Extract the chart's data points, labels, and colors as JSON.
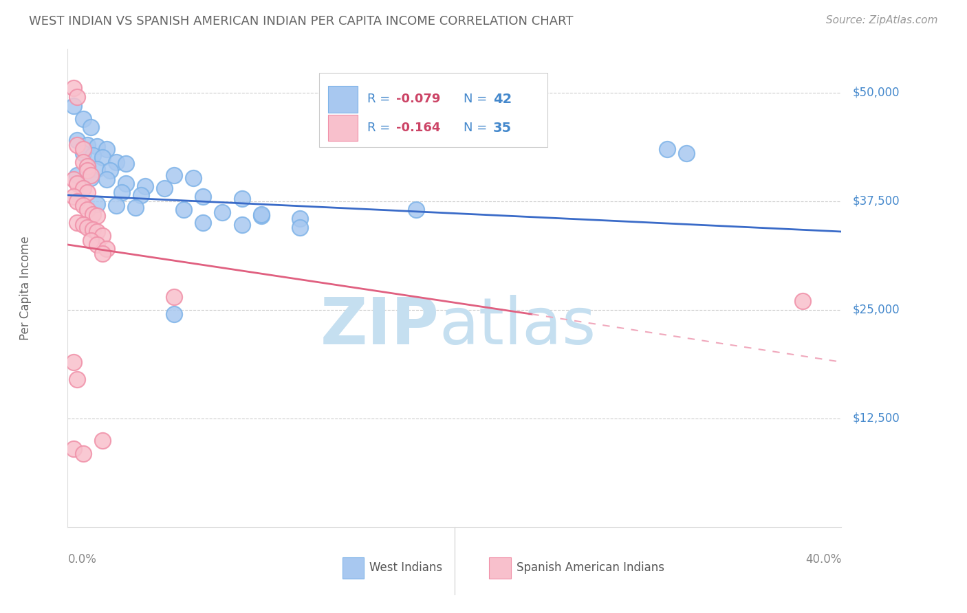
{
  "title": "WEST INDIAN VS SPANISH AMERICAN INDIAN PER CAPITA INCOME CORRELATION CHART",
  "source": "Source: ZipAtlas.com",
  "ylabel": "Per Capita Income",
  "x_lim": [
    0.0,
    0.4
  ],
  "y_lim": [
    0,
    55000
  ],
  "y_ticks": [
    12500,
    25000,
    37500,
    50000
  ],
  "legend_blue_r": "-0.079",
  "legend_blue_n": "42",
  "legend_pink_r": "-0.164",
  "legend_pink_n": "35",
  "legend_blue_label": "West Indians",
  "legend_pink_label": "Spanish American Indians",
  "blue_fc": "#A8C8F0",
  "blue_ec": "#7EB3E8",
  "pink_fc": "#F8C0CC",
  "pink_ec": "#F090A8",
  "blue_line_color": "#3A6BC8",
  "pink_line_solid_color": "#E06080",
  "pink_line_dash_color": "#F0A8BC",
  "blue_line": {
    "x0": 0.0,
    "y0": 38200,
    "x1": 0.4,
    "y1": 34000
  },
  "pink_line_solid": {
    "x0": 0.0,
    "y0": 32500,
    "x1": 0.24,
    "y1": 24500
  },
  "pink_line_dashed": {
    "x0": 0.24,
    "y0": 24500,
    "x1": 0.4,
    "y1": 19000
  },
  "blue_points": [
    [
      0.003,
      48500
    ],
    [
      0.008,
      47000
    ],
    [
      0.012,
      46000
    ],
    [
      0.005,
      44500
    ],
    [
      0.01,
      44000
    ],
    [
      0.015,
      43800
    ],
    [
      0.02,
      43500
    ],
    [
      0.008,
      43000
    ],
    [
      0.013,
      42800
    ],
    [
      0.018,
      42500
    ],
    [
      0.025,
      42000
    ],
    [
      0.03,
      41800
    ],
    [
      0.01,
      41500
    ],
    [
      0.015,
      41200
    ],
    [
      0.022,
      41000
    ],
    [
      0.005,
      40500
    ],
    [
      0.012,
      40200
    ],
    [
      0.02,
      40000
    ],
    [
      0.055,
      40500
    ],
    [
      0.065,
      40200
    ],
    [
      0.03,
      39500
    ],
    [
      0.04,
      39200
    ],
    [
      0.05,
      39000
    ],
    [
      0.028,
      38500
    ],
    [
      0.038,
      38200
    ],
    [
      0.07,
      38000
    ],
    [
      0.09,
      37800
    ],
    [
      0.015,
      37200
    ],
    [
      0.025,
      37000
    ],
    [
      0.035,
      36800
    ],
    [
      0.06,
      36500
    ],
    [
      0.08,
      36200
    ],
    [
      0.1,
      35800
    ],
    [
      0.12,
      35500
    ],
    [
      0.07,
      35000
    ],
    [
      0.09,
      34800
    ],
    [
      0.12,
      34500
    ],
    [
      0.18,
      36500
    ],
    [
      0.1,
      36000
    ],
    [
      0.055,
      24500
    ],
    [
      0.31,
      43500
    ],
    [
      0.32,
      43000
    ]
  ],
  "pink_points": [
    [
      0.003,
      50500
    ],
    [
      0.005,
      49500
    ],
    [
      0.005,
      44000
    ],
    [
      0.008,
      43500
    ],
    [
      0.008,
      42000
    ],
    [
      0.01,
      41500
    ],
    [
      0.01,
      41000
    ],
    [
      0.012,
      40500
    ],
    [
      0.003,
      40000
    ],
    [
      0.005,
      39500
    ],
    [
      0.008,
      39000
    ],
    [
      0.01,
      38500
    ],
    [
      0.003,
      38000
    ],
    [
      0.005,
      37500
    ],
    [
      0.008,
      37000
    ],
    [
      0.01,
      36500
    ],
    [
      0.013,
      36000
    ],
    [
      0.015,
      35800
    ],
    [
      0.005,
      35000
    ],
    [
      0.008,
      34800
    ],
    [
      0.01,
      34500
    ],
    [
      0.013,
      34200
    ],
    [
      0.015,
      34000
    ],
    [
      0.018,
      33500
    ],
    [
      0.012,
      33000
    ],
    [
      0.015,
      32500
    ],
    [
      0.02,
      32000
    ],
    [
      0.018,
      31500
    ],
    [
      0.055,
      26500
    ],
    [
      0.38,
      26000
    ],
    [
      0.003,
      19000
    ],
    [
      0.005,
      17000
    ],
    [
      0.018,
      10000
    ],
    [
      0.003,
      9000
    ],
    [
      0.008,
      8500
    ]
  ],
  "watermark_zip_color": "#C5DFF0",
  "watermark_atlas_color": "#C5DFF0",
  "background_color": "#ffffff",
  "grid_color": "#cccccc",
  "title_color": "#666666",
  "ylabel_color": "#666666",
  "source_color": "#999999",
  "right_label_color": "#4488CC",
  "legend_color": "#4488CC",
  "legend_r_color": "#CC4466"
}
